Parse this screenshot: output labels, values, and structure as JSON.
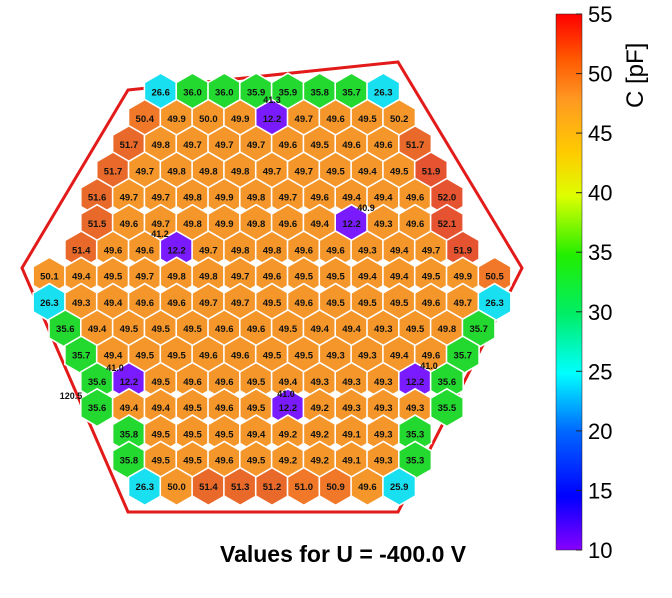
{
  "chart_data": {
    "type": "heatmap",
    "layout": "hexagonal sensor map",
    "caption": "Values for U = -400.0 V",
    "colorbar": {
      "label": "C [pF]",
      "ticks": [
        10,
        15,
        20,
        25,
        30,
        35,
        40,
        45,
        50,
        55
      ],
      "range": [
        10,
        55
      ]
    },
    "rows": [
      [
        "26.6",
        "36.0",
        "36.0",
        "35.9",
        "35.9",
        "35.8",
        "35.7",
        "26.3"
      ],
      [
        "50.4",
        "49.9",
        "50.0",
        "49.9",
        "12.2",
        "49.7",
        "49.6",
        "49.5",
        "50.2"
      ],
      [
        "51.7",
        "49.8",
        "49.7",
        "49.7",
        "49.7",
        "49.6",
        "49.5",
        "49.6",
        "49.6",
        "51.7"
      ],
      [
        "51.7",
        "49.7",
        "49.8",
        "49.8",
        "49.8",
        "49.7",
        "49.7",
        "49.5",
        "49.4",
        "49.5",
        "51.9"
      ],
      [
        "51.6",
        "49.7",
        "49.7",
        "49.8",
        "49.9",
        "49.8",
        "49.7",
        "49.6",
        "49.4",
        "49.4",
        "49.6",
        "52.0"
      ],
      [
        "51.5",
        "49.6",
        "49.7",
        "49.8",
        "49.9",
        "49.8",
        "49.6",
        "49.4",
        "12.2",
        "49.3",
        "49.6",
        "52.1"
      ],
      [
        "51.4",
        "49.6",
        "49.6",
        "12.2",
        "49.7",
        "49.8",
        "49.8",
        "49.6",
        "49.6",
        "49.3",
        "49.4",
        "49.7",
        "51.9"
      ],
      [
        "50.1",
        "49.4",
        "49.5",
        "49.7",
        "49.8",
        "49.8",
        "49.7",
        "49.6",
        "49.5",
        "49.5",
        "49.4",
        "49.4",
        "49.5",
        "49.9",
        "50.5"
      ],
      [
        "26.3",
        "49.3",
        "49.4",
        "49.6",
        "49.6",
        "49.7",
        "49.7",
        "49.5",
        "49.6",
        "49.5",
        "49.5",
        "49.5",
        "49.6",
        "49.7",
        "26.3"
      ],
      [
        "35.6",
        "49.4",
        "49.5",
        "49.5",
        "49.5",
        "49.6",
        "49.6",
        "49.5",
        "49.4",
        "49.4",
        "49.3",
        "49.5",
        "49.8",
        "35.7"
      ],
      [
        "35.7",
        "49.4",
        "49.5",
        "49.5",
        "49.6",
        "49.6",
        "49.5",
        "49.5",
        "49.3",
        "49.3",
        "49.4",
        "49.6",
        "35.7"
      ],
      [
        "35.6",
        "12.2",
        "49.5",
        "49.6",
        "49.6",
        "49.5",
        "49.4",
        "49.3",
        "49.3",
        "49.3",
        "12.2",
        "35.6"
      ],
      [
        "35.6",
        "49.4",
        "49.4",
        "49.5",
        "49.6",
        "49.5",
        "12.2",
        "49.2",
        "49.3",
        "49.3",
        "49.3",
        "35.5"
      ],
      [
        "35.8",
        "49.5",
        "49.5",
        "49.5",
        "49.4",
        "49.2",
        "49.2",
        "49.1",
        "49.3",
        "35.3"
      ],
      [
        "35.8",
        "49.5",
        "49.5",
        "49.6",
        "49.5",
        "49.2",
        "49.2",
        "49.1",
        "49.3",
        "35.3"
      ],
      [
        "26.3",
        "50.0",
        "51.4",
        "51.3",
        "51.2",
        "51.0",
        "50.9",
        "49.6",
        "25.9"
      ]
    ],
    "annotations": [
      "41.3",
      "40.9",
      "41.2",
      "41.0",
      "41.0",
      "41.0",
      "120.5"
    ]
  }
}
